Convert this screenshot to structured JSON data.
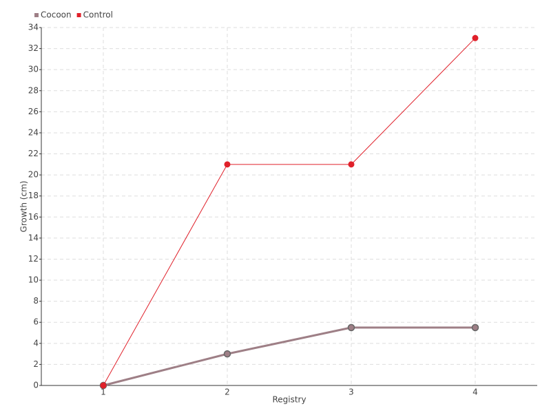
{
  "chart_data": {
    "type": "line",
    "x_label": "Registry",
    "y_label": "Growth (cm)",
    "categories": [
      "1",
      "2",
      "3",
      "4"
    ],
    "series": [
      {
        "name": "Cocoon",
        "color": "#9e7f86",
        "values": [
          0,
          3,
          5.5,
          5.5
        ]
      },
      {
        "name": "Control",
        "color": "#e0202a",
        "values": [
          0,
          21,
          21,
          33
        ]
      }
    ],
    "ylim": [
      0,
      34
    ],
    "yticks": [
      0,
      2,
      4,
      6,
      8,
      10,
      12,
      14,
      16,
      18,
      20,
      22,
      24,
      26,
      28,
      30,
      32,
      34
    ],
    "grid": true,
    "legend": "top-left"
  }
}
